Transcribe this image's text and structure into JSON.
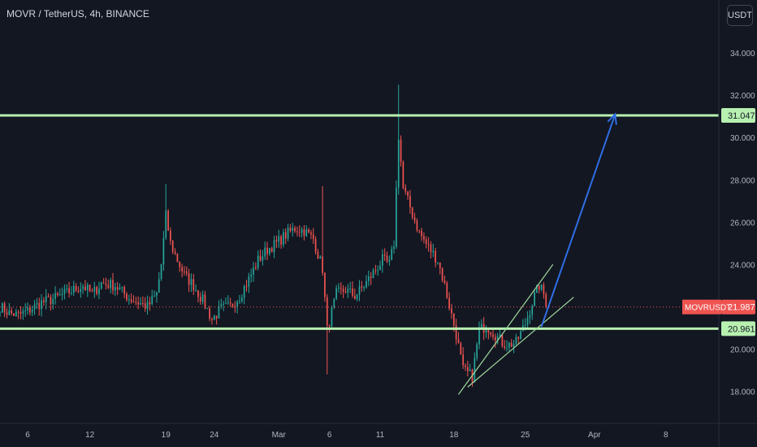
{
  "header": {
    "symbol_title": "MOVR / TetherUS, 4h, BINANCE",
    "currency_button": "USDT"
  },
  "colors": {
    "background": "#131722",
    "up_candle": "#26a69a",
    "down_candle": "#ef5350",
    "level_line": "#b7f0b0",
    "channel_line": "#9ed89a",
    "projection_arrow": "#2f6ee5",
    "last_price_line": "#ef5350"
  },
  "chart_data": {
    "type": "candlestick",
    "title": "MOVR / TetherUS, 4h, BINANCE",
    "y_axis": {
      "ticks": [
        "34.000",
        "32.000",
        "30.000",
        "28.000",
        "26.000",
        "24.000",
        "22.000",
        "20.000",
        "18.000"
      ],
      "tick_values": [
        34,
        32,
        30,
        28,
        26,
        24,
        22,
        20,
        18
      ],
      "range": [
        16.75,
        35.35
      ]
    },
    "x_axis": {
      "ticks": [
        "6",
        "12",
        "19",
        "24",
        "Mar",
        "6",
        "11",
        "18",
        "25",
        "Apr",
        "8"
      ],
      "tick_index": [
        12,
        39,
        72,
        93,
        121,
        143,
        165,
        197,
        228,
        258,
        289
      ],
      "range": [
        0,
        312
      ]
    },
    "price_anchors": [
      [
        0,
        22.0
      ],
      [
        4,
        21.7
      ],
      [
        8,
        21.6
      ],
      [
        12,
        21.8
      ],
      [
        18,
        22.2
      ],
      [
        24,
        22.4
      ],
      [
        30,
        22.7
      ],
      [
        36,
        23.0
      ],
      [
        40,
        22.6
      ],
      [
        44,
        23.1
      ],
      [
        50,
        23.0
      ],
      [
        56,
        22.4
      ],
      [
        60,
        22.2
      ],
      [
        64,
        22.0
      ],
      [
        68,
        22.6
      ],
      [
        70,
        24.0
      ],
      [
        72,
        26.3
      ],
      [
        74,
        25.0
      ],
      [
        77,
        24.2
      ],
      [
        80,
        23.5
      ],
      [
        84,
        23.0
      ],
      [
        88,
        22.3
      ],
      [
        92,
        21.4
      ],
      [
        96,
        21.9
      ],
      [
        100,
        22.0
      ],
      [
        104,
        22.5
      ],
      [
        108,
        23.3
      ],
      [
        112,
        24.2
      ],
      [
        116,
        24.7
      ],
      [
        120,
        25.0
      ],
      [
        124,
        25.4
      ],
      [
        128,
        25.7
      ],
      [
        132,
        25.6
      ],
      [
        136,
        25.2
      ],
      [
        140,
        23.8
      ],
      [
        142,
        20.9
      ],
      [
        146,
        22.6
      ],
      [
        150,
        22.8
      ],
      [
        154,
        22.5
      ],
      [
        158,
        23.0
      ],
      [
        162,
        23.6
      ],
      [
        166,
        24.2
      ],
      [
        169,
        24.0
      ],
      [
        171,
        25.0
      ],
      [
        173,
        30.1
      ],
      [
        175,
        27.6
      ],
      [
        178,
        26.7
      ],
      [
        182,
        25.5
      ],
      [
        186,
        24.8
      ],
      [
        190,
        24.2
      ],
      [
        193,
        23.0
      ],
      [
        196,
        21.6
      ],
      [
        198,
        20.7
      ],
      [
        201,
        19.0
      ],
      [
        205,
        18.7
      ],
      [
        208,
        20.9
      ],
      [
        211,
        21.1
      ],
      [
        214,
        20.8
      ],
      [
        218,
        20.3
      ],
      [
        221,
        20.2
      ],
      [
        224,
        20.3
      ],
      [
        228,
        21.2
      ],
      [
        232,
        22.5
      ],
      [
        234,
        23.0
      ],
      [
        236,
        22.6
      ],
      [
        237,
        22.0
      ]
    ],
    "horizontal_levels": [
      {
        "label": "31.047",
        "value": 31.047
      },
      {
        "label": "20.961",
        "value": 20.961
      }
    ],
    "last_price": {
      "symbol": "MOVRUSDT",
      "label": "21.987",
      "value": 21.987
    },
    "channel_lines": [
      {
        "from": [
          199,
          17.85
        ],
        "to": [
          240,
          24.0
        ]
      },
      {
        "from": [
          203,
          18.2
        ],
        "to": [
          249,
          22.45
        ]
      }
    ],
    "projection_arrow": {
      "from": [
        235,
        21.05
      ],
      "to": [
        267,
        31.1
      ]
    },
    "grid": false
  }
}
